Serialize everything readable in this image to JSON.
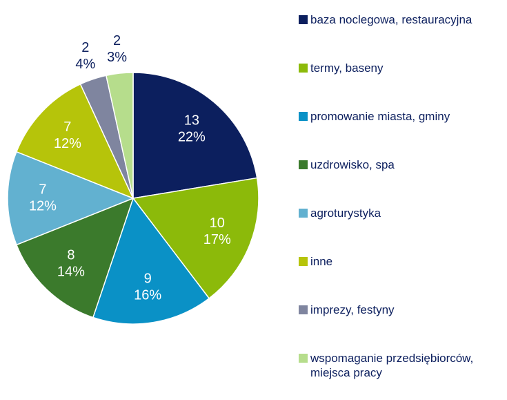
{
  "chart_data": {
    "type": "pie",
    "categories": [
      "baza noclegowa, restauracyjna",
      "termy, baseny",
      "promowanie miasta, gminy",
      "uzdrowisko, spa",
      "agroturystyka",
      "inne",
      "imprezy, festyny",
      "wspomaganie przedsiębiorców, miejsca pracy"
    ],
    "values": [
      13,
      10,
      9,
      8,
      7,
      7,
      2,
      2
    ],
    "percent_labels": [
      "22%",
      "17%",
      "16%",
      "14%",
      "12%",
      "12%",
      "4%",
      "3%"
    ],
    "colors": [
      "#0c1f5e",
      "#8cba0a",
      "#0a91c6",
      "#3b7a2c",
      "#62b1d0",
      "#b6c40a",
      "#7f859f",
      "#b6dd8c"
    ],
    "legend": "right"
  }
}
